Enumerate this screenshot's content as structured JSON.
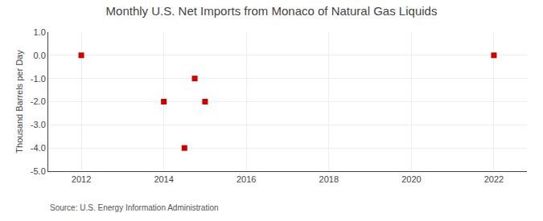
{
  "chart_data": {
    "type": "scatter",
    "title": "Monthly U.S. Net Imports from Monaco of Natural Gas Liquids",
    "ylabel": "Thousand Barrels per Day",
    "source": "Source: U.S. Energy Information Administration",
    "x": [
      2012,
      2014,
      2014.5,
      2014.75,
      2015,
      2022
    ],
    "values": [
      0.0,
      -2.0,
      -4.0,
      -1.0,
      -2.0,
      0.0
    ],
    "color": "#cc0000",
    "marker": "square",
    "xlim": [
      2011.2,
      2022.8
    ],
    "ylim": [
      -5.0,
      1.0
    ],
    "xticks": [
      2012,
      2014,
      2016,
      2018,
      2020,
      2022
    ],
    "yticks": [
      {
        "value": 1.0,
        "label": "1.0"
      },
      {
        "value": 0.0,
        "label": "0.0"
      },
      {
        "value": -1.0,
        "label": "-1.0"
      },
      {
        "value": -2.0,
        "label": "-2.0"
      },
      {
        "value": -3.0,
        "label": "-3.0"
      },
      {
        "value": -4.0,
        "label": "-4.0"
      },
      {
        "value": -5.0,
        "label": "-5.0"
      }
    ],
    "grid": true
  }
}
